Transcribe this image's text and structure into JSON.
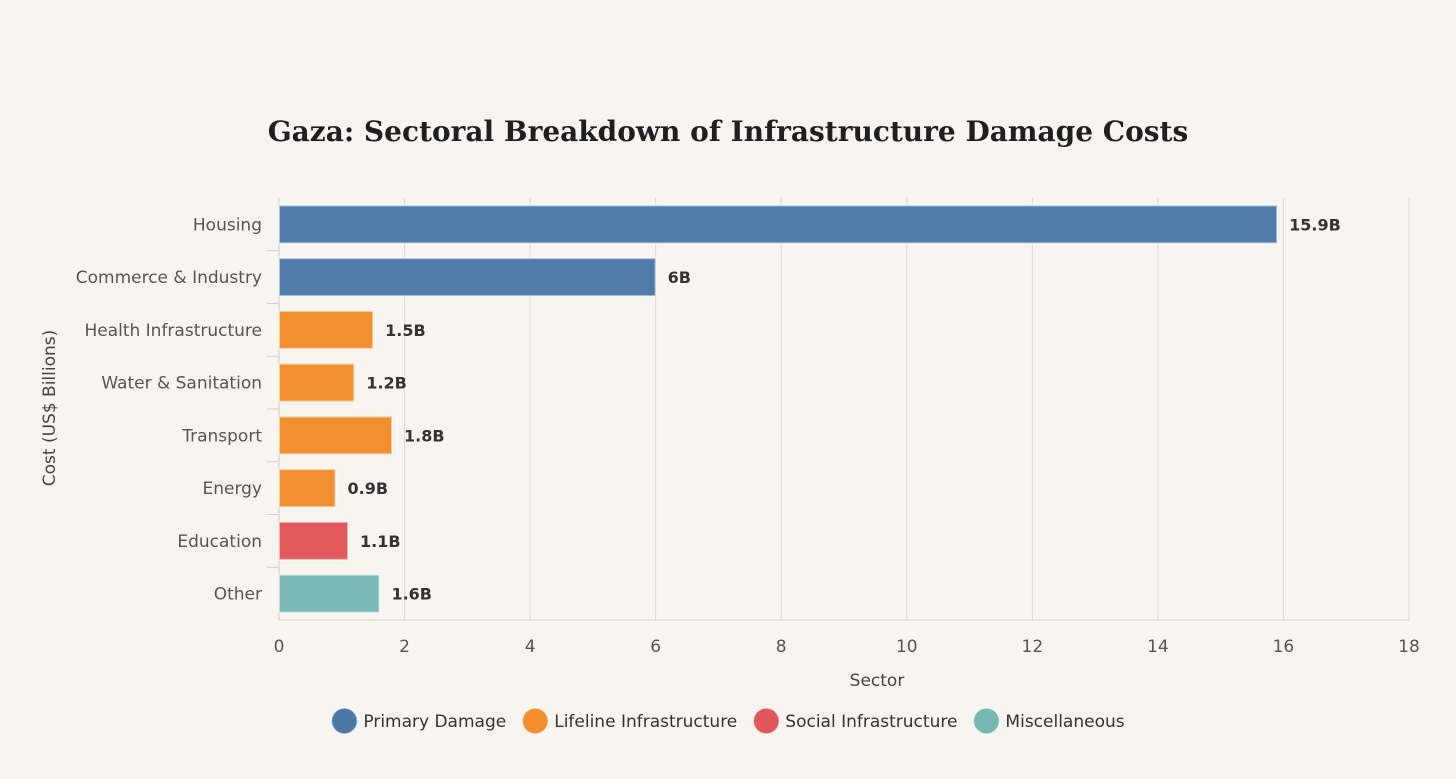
{
  "chart_data": {
    "type": "bar",
    "orientation": "horizontal",
    "title": "Gaza: Sectoral Breakdown of Infrastructure Damage Costs",
    "xlabel": "Sector",
    "ylabel": "Cost (US$ Billions)",
    "xlim": [
      0,
      18
    ],
    "x_ticks": [
      "0",
      "2",
      "4",
      "6",
      "8",
      "10",
      "12",
      "14",
      "16",
      "18"
    ],
    "grid": true,
    "legend_position": "bottom-center",
    "categories": [
      "Housing",
      "Commerce & Industry",
      "Health Infrastructure",
      "Water & Sanitation",
      "Transport",
      "Energy",
      "Education",
      "Other"
    ],
    "values": [
      15.9,
      6,
      1.5,
      1.2,
      1.8,
      0.9,
      1.1,
      1.6
    ],
    "data_labels": [
      "15.9B",
      "6B",
      "1.5B",
      "1.2B",
      "1.8B",
      "0.9B",
      "1.1B",
      "1.6B"
    ],
    "groups": [
      "Primary Damage",
      "Primary Damage",
      "Lifeline Infrastructure",
      "Lifeline Infrastructure",
      "Lifeline Infrastructure",
      "Lifeline Infrastructure",
      "Social Infrastructure",
      "Miscellaneous"
    ],
    "legend": [
      {
        "name": "Primary Damage",
        "color": "#4e79a7"
      },
      {
        "name": "Lifeline Infrastructure",
        "color": "#f28e2b"
      },
      {
        "name": "Social Infrastructure",
        "color": "#e15759"
      },
      {
        "name": "Miscellaneous",
        "color": "#76b7b2"
      }
    ]
  }
}
